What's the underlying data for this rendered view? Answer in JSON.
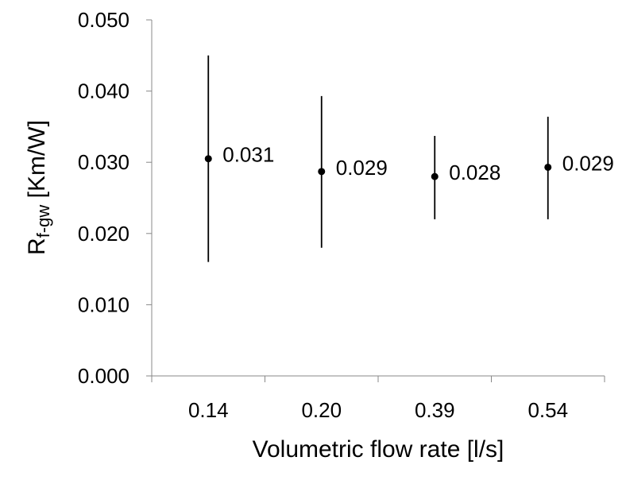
{
  "chart_data": {
    "type": "scatter",
    "categories": [
      "0.14",
      "0.20",
      "0.39",
      "0.54"
    ],
    "values": [
      0.0305,
      0.0287,
      0.028,
      0.0293
    ],
    "error_low": [
      0.016,
      0.018,
      0.022,
      0.022
    ],
    "error_high": [
      0.045,
      0.0393,
      0.0337,
      0.0364
    ],
    "data_labels": [
      "0.031",
      "0.029",
      "0.028",
      "0.029"
    ],
    "xlabel": "Volumetric flow rate [l/s]",
    "ylabel": {
      "main": "R",
      "subscript": "f-gw",
      "unit": " [Km/W]"
    },
    "ylim": [
      0,
      0.05
    ],
    "yticks": [
      "0.000",
      "0.010",
      "0.020",
      "0.030",
      "0.040",
      "0.050"
    ],
    "grid": false,
    "legend": "none",
    "marker_color": "#000000"
  }
}
